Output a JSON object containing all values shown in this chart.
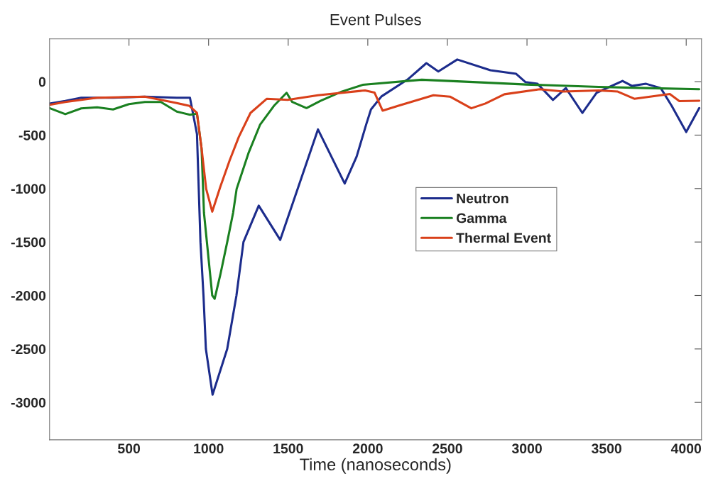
{
  "chart_data": {
    "type": "line",
    "title": "Event Pulses",
    "xlabel": "Time (nanoseconds)",
    "xlim": [
      1,
      4096
    ],
    "ylim": [
      -3350,
      400
    ],
    "xticks": [
      500,
      1000,
      1500,
      2000,
      2500,
      3000,
      3500,
      4000
    ],
    "yticks": [
      -3000,
      -2500,
      -2000,
      -1500,
      -1000,
      -500,
      0
    ],
    "grid": false,
    "legend": "center",
    "line_style": "solid",
    "marker": "none",
    "series": [
      {
        "name": "Neutron",
        "color": "#1c2c8c",
        "x": [
          1,
          100,
          200,
          400,
          600,
          800,
          883,
          927,
          949,
          968,
          983,
          1025,
          1117,
          1175,
          1219,
          1315,
          1450,
          1687,
          1855,
          1930,
          1990,
          2020,
          2086,
          2250,
          2368,
          2443,
          2562,
          2770,
          2932,
          2991,
          3066,
          3163,
          3244,
          3348,
          3437,
          3600,
          3660,
          3748,
          3840,
          3909,
          4000,
          4082
        ],
        "values": [
          -205,
          -180,
          -150,
          -150,
          -140,
          -150,
          -150,
          -490,
          -1500,
          -2000,
          -2500,
          -2927,
          -2500,
          -2000,
          -1500,
          -1160,
          -1480,
          -447,
          -953,
          -700,
          -400,
          -260,
          -138,
          20,
          173,
          95,
          207,
          107,
          73,
          -5,
          -20,
          -171,
          -60,
          -293,
          -104,
          7,
          -40,
          -20,
          -60,
          -227,
          -471,
          -247
        ]
      },
      {
        "name": "Gamma",
        "color": "#1a8020",
        "x": [
          1,
          100,
          200,
          300,
          400,
          500,
          600,
          700,
          800,
          883,
          927,
          956,
          971,
          1023,
          1038,
          1074,
          1118,
          1154,
          1176,
          1250,
          1323,
          1410,
          1490,
          1525,
          1615,
          1703,
          1836,
          1968,
          2339,
          2710,
          2995,
          3451,
          3748,
          4082
        ],
        "values": [
          -247,
          -304,
          -250,
          -240,
          -260,
          -210,
          -190,
          -190,
          -280,
          -310,
          -300,
          -627,
          -1227,
          -2000,
          -2031,
          -1804,
          -1493,
          -1227,
          -1004,
          -671,
          -404,
          -227,
          -104,
          -190,
          -247,
          -180,
          -93,
          -30,
          18,
          -7,
          -27,
          -49,
          -60,
          -71
        ]
      },
      {
        "name": "Thermal Event",
        "color": "#d9401a",
        "x": [
          1,
          100,
          300,
          600,
          800,
          880,
          927,
          956,
          985,
          1023,
          1074,
          1132,
          1190,
          1263,
          1366,
          1497,
          1687,
          1983,
          2042,
          2093,
          2189,
          2412,
          2516,
          2650,
          2739,
          2858,
          3081,
          3230,
          3451,
          3570,
          3674,
          3897,
          3957,
          4082
        ],
        "values": [
          -216,
          -190,
          -150,
          -140,
          -200,
          -227,
          -293,
          -627,
          -1004,
          -1216,
          -982,
          -738,
          -516,
          -293,
          -160,
          -170,
          -127,
          -82,
          -102,
          -271,
          -227,
          -127,
          -140,
          -249,
          -204,
          -118,
          -71,
          -93,
          -82,
          -93,
          -160,
          -116,
          -182,
          -178
        ]
      }
    ]
  }
}
